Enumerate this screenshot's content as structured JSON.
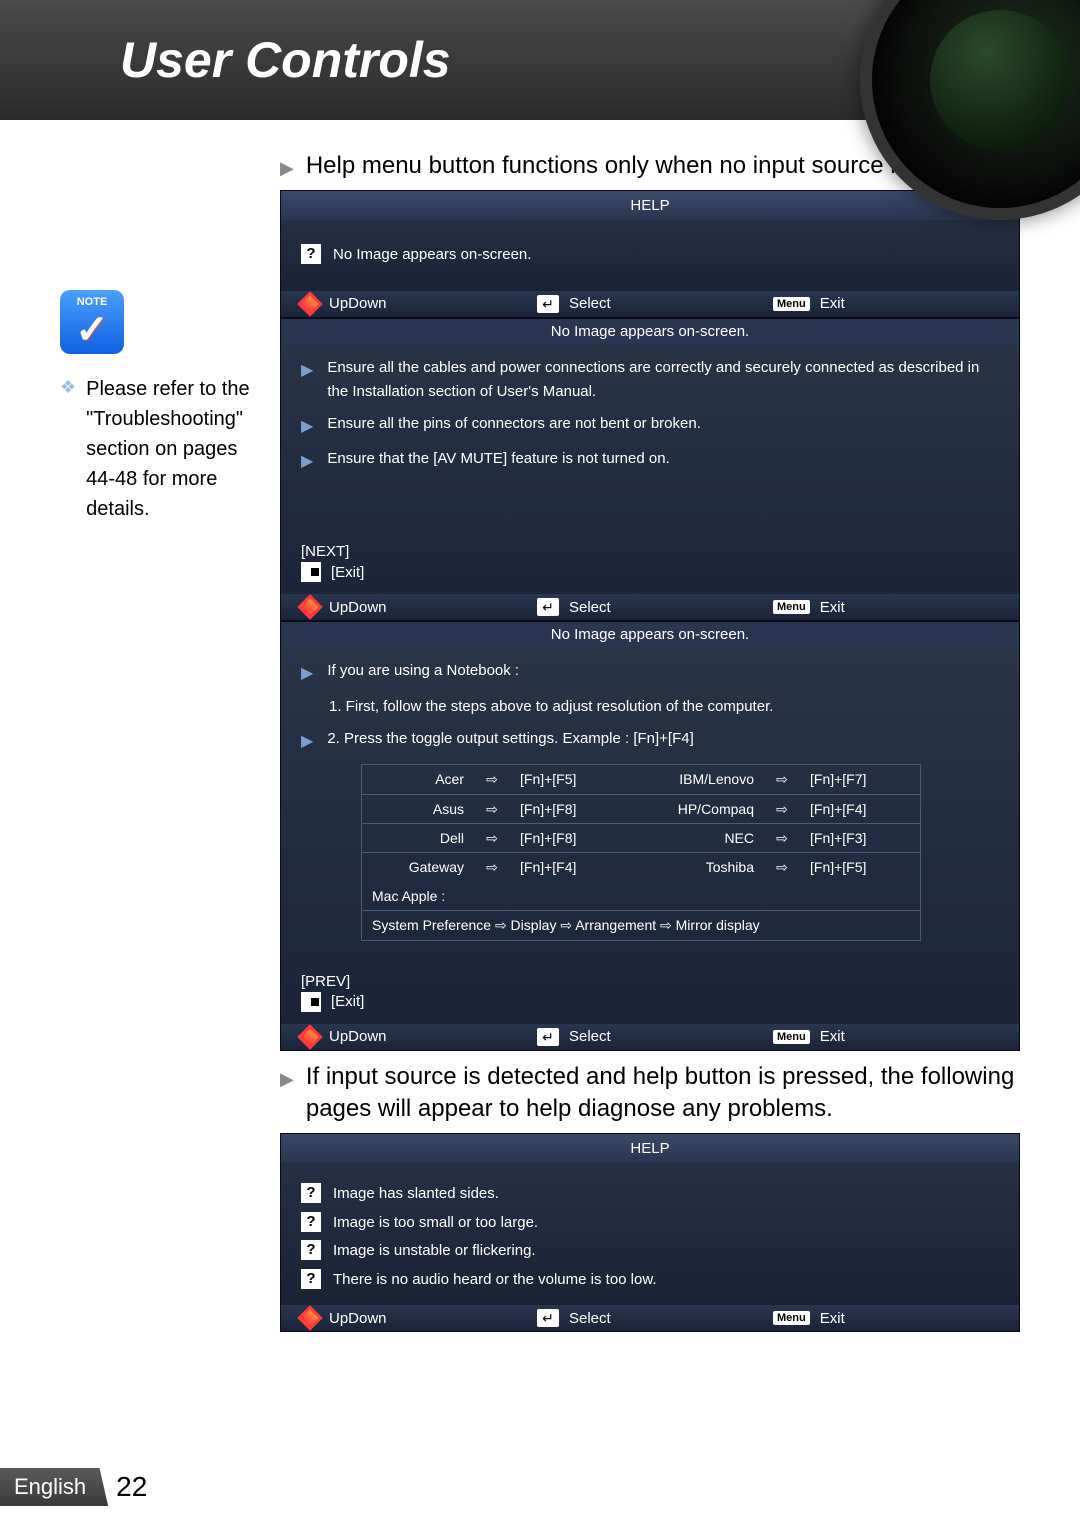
{
  "header": {
    "title": "User Controls"
  },
  "sidebar": {
    "note_label": "NOTE",
    "note_text": "Please refer to the \"Troubleshooting\" section on pages 44-48 for more details."
  },
  "intro1": "Help menu button functions only when no input source is detected.",
  "intro2": "If input source is detected and help button is pressed, the following pages will appear to help diagnose any problems.",
  "help_title": "HELP",
  "nav": {
    "updown": "UpDown",
    "select": "Select",
    "exit": "Exit",
    "menu": "Menu"
  },
  "panel1": {
    "item": "No Image appears on-screen."
  },
  "panel2": {
    "subtitle": "No Image appears on-screen.",
    "lines": [
      "Ensure all the cables and power connections are correctly and securely connected as described in the Installation section of User's Manual.",
      "Ensure all the pins of connectors are not bent or broken.",
      "Ensure that the [AV MUTE] feature is not turned on."
    ],
    "next": "[NEXT]",
    "exit": "[Exit]"
  },
  "panel3": {
    "subtitle": "No Image appears on-screen.",
    "l1": "If you are using a Notebook :",
    "l2": "1. First, follow the steps above to adjust resolution of the computer.",
    "l3": "2. Press the toggle output settings. Example : [Fn]+[F4]",
    "brands": [
      {
        "b1": "Acer",
        "k1": "[Fn]+[F5]",
        "b2": "IBM/Lenovo",
        "k2": "[Fn]+[F7]"
      },
      {
        "b1": "Asus",
        "k1": "[Fn]+[F8]",
        "b2": "HP/Compaq",
        "k2": "[Fn]+[F4]"
      },
      {
        "b1": "Dell",
        "k1": "[Fn]+[F8]",
        "b2": "NEC",
        "k2": "[Fn]+[F3]"
      },
      {
        "b1": "Gateway",
        "k1": "[Fn]+[F4]",
        "b2": "Toshiba",
        "k2": "[Fn]+[F5]"
      }
    ],
    "mac_label": "Mac Apple :",
    "mac_line": "System Preference ⇨ Display ⇨ Arrangement ⇨ Mirror display",
    "prev": "[PREV]",
    "exit": "[Exit]"
  },
  "panel4": {
    "items": [
      "Image has slanted sides.",
      "Image is too small or too large.",
      "Image is unstable or flickering.",
      "There is no audio heard or the volume is too low."
    ]
  },
  "footer": {
    "lang": "English",
    "page": "22"
  }
}
